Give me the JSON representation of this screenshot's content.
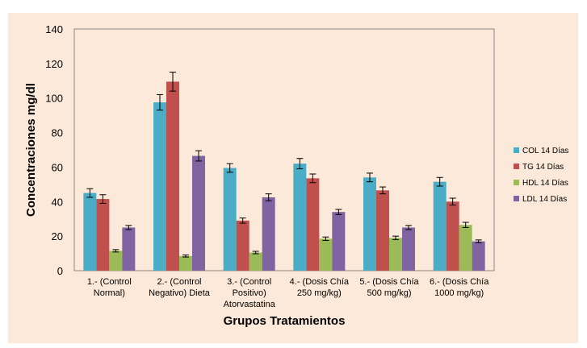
{
  "chart_data": {
    "type": "bar",
    "title": "",
    "xlabel": "Grupos Tratamientos",
    "ylabel": "Concentraciones  mg/dl",
    "ylim": [
      0,
      140
    ],
    "yticks": [
      0,
      20,
      40,
      60,
      80,
      100,
      120,
      140
    ],
    "grid": false,
    "legend_position": "right",
    "categories": [
      [
        "1.- (Control",
        "Normal)"
      ],
      [
        "2.- (Control",
        "Negativo) Dieta"
      ],
      [
        "3.- (Control",
        "Positivo)",
        "Atorvastatina"
      ],
      [
        "4.- (Dosis Chía",
        "250 mg/kg)"
      ],
      [
        "5.- (Dosis Chía",
        "500 mg/kg)"
      ],
      [
        "6.- (Dosis Chía",
        "1000 mg/kg)"
      ]
    ],
    "series": [
      {
        "name": "COL 14 Días",
        "color": "#4bacc6",
        "values": [
          45,
          97.5,
          59.5,
          62,
          54,
          51.5
        ],
        "errors": [
          2.5,
          4.5,
          2.5,
          3,
          2.5,
          2.5
        ]
      },
      {
        "name": "TG 14 Días",
        "color": "#c0504d",
        "values": [
          41.5,
          109.5,
          29,
          53.5,
          46.5,
          40
        ],
        "errors": [
          2.5,
          5.5,
          1.5,
          2.5,
          2,
          2
        ]
      },
      {
        "name": "HDL 14 Días",
        "color": "#9bbb59",
        "values": [
          11.5,
          8.5,
          10.5,
          18.5,
          19,
          26.5
        ],
        "errors": [
          0.7,
          0.6,
          0.7,
          1,
          1,
          1.5
        ]
      },
      {
        "name": "LDL 14 Días",
        "color": "#8064a2",
        "values": [
          25,
          66.5,
          42.5,
          34,
          25,
          17
        ],
        "errors": [
          1.2,
          3,
          2,
          1.5,
          1.2,
          0.8
        ]
      }
    ]
  }
}
